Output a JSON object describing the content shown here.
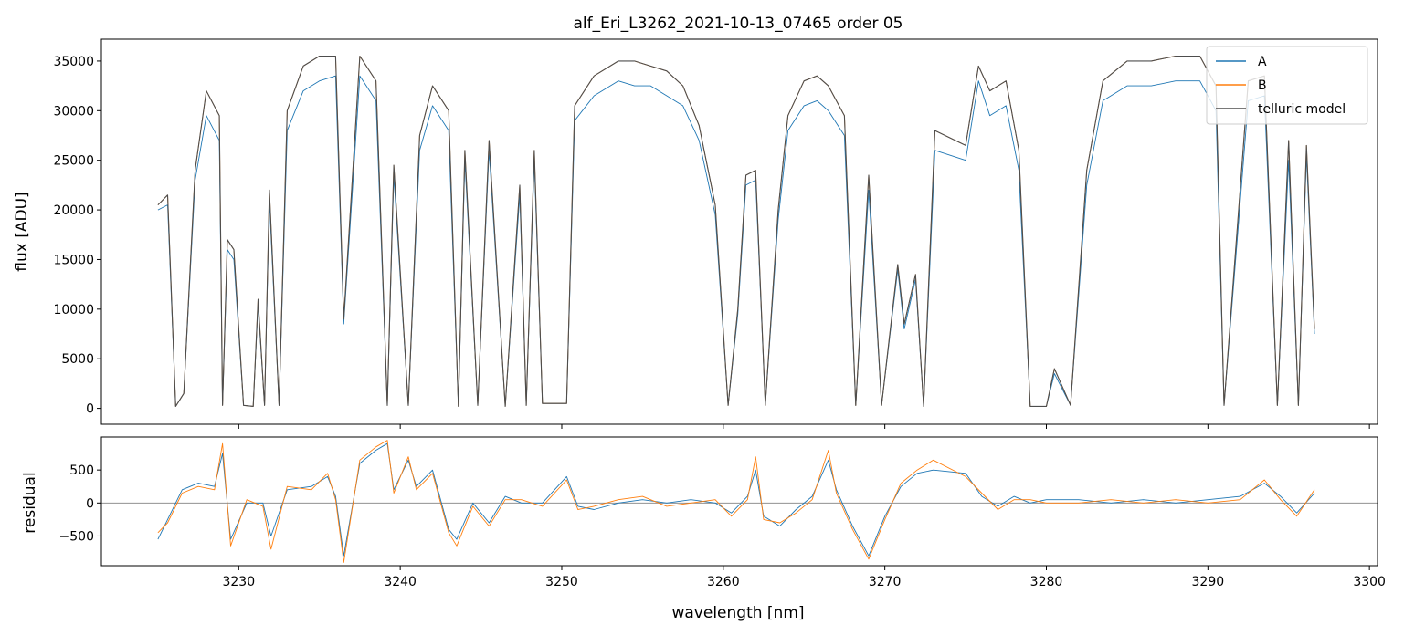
{
  "chart_data": [
    {
      "type": "line",
      "title": "alf_Eri_L3262_2021-10-13_07465  order 05",
      "xlabel": "",
      "ylabel": "flux [ADU]",
      "xlim": [
        3221.5,
        3300.5
      ],
      "ylim": [
        -1600,
        37200
      ],
      "yticks": [
        0,
        5000,
        10000,
        15000,
        20000,
        25000,
        30000,
        35000
      ],
      "ytick_labels": [
        "0",
        "5000",
        "10000",
        "15000",
        "20000",
        "25000",
        "30000",
        "35000"
      ],
      "grid": false,
      "legend_position": "top-right",
      "colors": {
        "A": "#1f77b4",
        "B": "#ff7f0e",
        "telluric": "#4d4d4d"
      },
      "series": [
        {
          "name": "A",
          "x": [
            3225.0,
            3225.6,
            3226.1,
            3226.6,
            3227.3,
            3228.0,
            3228.8,
            3229.0,
            3229.3,
            3229.7,
            3230.3,
            3230.9,
            3231.2,
            3231.6,
            3231.9,
            3232.5,
            3233.0,
            3234.0,
            3235.0,
            3236.0,
            3236.5,
            3237.5,
            3238.5,
            3239.2,
            3239.6,
            3240.5,
            3241.2,
            3242.0,
            3243.0,
            3243.6,
            3244.0,
            3244.8,
            3245.5,
            3246.5,
            3247.4,
            3247.8,
            3248.3,
            3248.8,
            3250.3,
            3250.8,
            3252.0,
            3253.5,
            3254.5,
            3255.5,
            3256.5,
            3257.5,
            3258.5,
            3259.5,
            3260.3,
            3260.9,
            3261.4,
            3262.0,
            3262.6,
            3263.4,
            3264.0,
            3265.0,
            3265.8,
            3266.5,
            3267.5,
            3268.2,
            3269.0,
            3269.8,
            3270.8,
            3271.2,
            3271.9,
            3272.4,
            3273.1,
            3275.0,
            3275.8,
            3276.5,
            3277.5,
            3278.3,
            3279.0,
            3280.0,
            3280.5,
            3281.5,
            3282.5,
            3283.5,
            3285.0,
            3286.5,
            3288.0,
            3289.5,
            3290.5,
            3291.0,
            3292.5,
            3293.5,
            3294.3,
            3295.0,
            3295.6,
            3296.1,
            3296.6
          ],
          "y": [
            20000,
            20500,
            200,
            1500,
            23000,
            29500,
            27000,
            300,
            16000,
            15000,
            300,
            200,
            10500,
            300,
            21000,
            300,
            28000,
            32000,
            33000,
            33500,
            8500,
            33500,
            31000,
            300,
            23500,
            300,
            26000,
            30500,
            28000,
            200,
            25000,
            300,
            26000,
            200,
            21500,
            300,
            25000,
            500,
            500,
            29000,
            31500,
            33000,
            32500,
            32500,
            31500,
            30500,
            27000,
            19500,
            300,
            9500,
            22500,
            23000,
            300,
            19000,
            28000,
            30500,
            31000,
            30000,
            27500,
            300,
            22000,
            300,
            14000,
            8000,
            13000,
            200,
            26000,
            25000,
            33000,
            29500,
            30500,
            24000,
            200,
            200,
            3500,
            300,
            22500,
            31000,
            32500,
            32500,
            33000,
            33000,
            30000,
            300,
            31000,
            31500,
            300,
            25000,
            300,
            25500,
            7500
          ]
        },
        {
          "name": "B",
          "x": [
            3225.0,
            3225.6,
            3226.1,
            3226.6,
            3227.3,
            3228.0,
            3228.8,
            3229.0,
            3229.3,
            3229.7,
            3230.3,
            3230.9,
            3231.2,
            3231.6,
            3231.9,
            3232.5,
            3233.0,
            3234.0,
            3235.0,
            3236.0,
            3236.5,
            3237.5,
            3238.5,
            3239.2,
            3239.6,
            3240.5,
            3241.2,
            3242.0,
            3243.0,
            3243.6,
            3244.0,
            3244.8,
            3245.5,
            3246.5,
            3247.4,
            3247.8,
            3248.3,
            3248.8,
            3250.3,
            3250.8,
            3252.0,
            3253.5,
            3254.5,
            3255.5,
            3256.5,
            3257.5,
            3258.5,
            3259.5,
            3260.3,
            3260.9,
            3261.4,
            3262.0,
            3262.6,
            3263.4,
            3264.0,
            3265.0,
            3265.8,
            3266.5,
            3267.5,
            3268.2,
            3269.0,
            3269.8,
            3270.8,
            3271.2,
            3271.9,
            3272.4,
            3273.1,
            3275.0,
            3275.8,
            3276.5,
            3277.5,
            3278.3,
            3279.0,
            3280.0,
            3280.5,
            3281.5,
            3282.5,
            3283.5,
            3285.0,
            3286.5,
            3288.0,
            3289.5,
            3290.5,
            3291.0,
            3292.5,
            3293.5,
            3294.3,
            3295.0,
            3295.6,
            3296.1,
            3296.6
          ],
          "y": [
            20500,
            21500,
            200,
            1500,
            24000,
            32000,
            29500,
            300,
            17000,
            16000,
            300,
            200,
            11000,
            300,
            22000,
            300,
            30000,
            34500,
            35500,
            35500,
            9000,
            35500,
            33000,
            300,
            24500,
            300,
            27500,
            32500,
            30000,
            200,
            26000,
            300,
            27000,
            200,
            22500,
            300,
            26000,
            500,
            500,
            30500,
            33500,
            35000,
            35000,
            34500,
            34000,
            32500,
            28500,
            20500,
            300,
            10000,
            23500,
            24000,
            300,
            20000,
            29500,
            33000,
            33500,
            32500,
            29500,
            300,
            23500,
            300,
            14500,
            8500,
            13500,
            200,
            28000,
            26500,
            34500,
            32000,
            33000,
            26000,
            200,
            200,
            4000,
            300,
            24000,
            33000,
            35000,
            35000,
            35500,
            35500,
            32500,
            300,
            33000,
            33500,
            300,
            27000,
            300,
            26500,
            8000
          ]
        },
        {
          "name": "telluric model",
          "x": [
            3225.0,
            3225.6,
            3226.1,
            3226.6,
            3227.3,
            3228.0,
            3228.8,
            3229.0,
            3229.3,
            3229.7,
            3230.3,
            3230.9,
            3231.2,
            3231.6,
            3231.9,
            3232.5,
            3233.0,
            3234.0,
            3235.0,
            3236.0,
            3236.5,
            3237.5,
            3238.5,
            3239.2,
            3239.6,
            3240.5,
            3241.2,
            3242.0,
            3243.0,
            3243.6,
            3244.0,
            3244.8,
            3245.5,
            3246.5,
            3247.4,
            3247.8,
            3248.3,
            3248.8,
            3250.3,
            3250.8,
            3252.0,
            3253.5,
            3254.5,
            3255.5,
            3256.5,
            3257.5,
            3258.5,
            3259.5,
            3260.3,
            3260.9,
            3261.4,
            3262.0,
            3262.6,
            3263.4,
            3264.0,
            3265.0,
            3265.8,
            3266.5,
            3267.5,
            3268.2,
            3269.0,
            3269.8,
            3270.8,
            3271.2,
            3271.9,
            3272.4,
            3273.1,
            3275.0,
            3275.8,
            3276.5,
            3277.5,
            3278.3,
            3279.0,
            3280.0,
            3280.5,
            3281.5,
            3282.5,
            3283.5,
            3285.0,
            3286.5,
            3288.0,
            3289.5,
            3290.5,
            3291.0,
            3292.5,
            3293.5,
            3294.3,
            3295.0,
            3295.6,
            3296.1,
            3296.6
          ],
          "y": [
            20500,
            21500,
            200,
            1500,
            24000,
            32000,
            29500,
            300,
            17000,
            16000,
            300,
            200,
            11000,
            300,
            22000,
            300,
            30000,
            34500,
            35500,
            35500,
            9000,
            35500,
            33000,
            300,
            24500,
            300,
            27500,
            32500,
            30000,
            200,
            26000,
            300,
            27000,
            200,
            22500,
            300,
            26000,
            500,
            500,
            30500,
            33500,
            35000,
            35000,
            34500,
            34000,
            32500,
            28500,
            20500,
            300,
            10000,
            23500,
            24000,
            300,
            20000,
            29500,
            33000,
            33500,
            32500,
            29500,
            300,
            23500,
            300,
            14500,
            8500,
            13500,
            200,
            28000,
            26500,
            34500,
            32000,
            33000,
            26000,
            200,
            200,
            4000,
            300,
            24000,
            33000,
            35000,
            35000,
            35500,
            35500,
            32500,
            300,
            33000,
            33500,
            300,
            27000,
            300,
            26500,
            8000
          ]
        }
      ]
    },
    {
      "type": "line",
      "title": "",
      "xlabel": "wavelength [nm]",
      "ylabel": "residual",
      "xlim": [
        3221.5,
        3300.5
      ],
      "ylim": [
        -950,
        1000
      ],
      "xticks": [
        3230,
        3240,
        3250,
        3260,
        3270,
        3280,
        3290,
        3300
      ],
      "xtick_labels": [
        "3230",
        "3240",
        "3250",
        "3260",
        "3270",
        "3280",
        "3290",
        "3300"
      ],
      "yticks": [
        -500,
        0,
        500
      ],
      "ytick_labels": [
        "−500",
        "0",
        "500"
      ],
      "zero_line": true,
      "grid": false,
      "series": [
        {
          "name": "A",
          "x": [
            3225.0,
            3225.6,
            3226.5,
            3227.5,
            3228.5,
            3229.0,
            3229.5,
            3230.5,
            3231.5,
            3232.0,
            3233.0,
            3234.5,
            3235.5,
            3236.0,
            3236.5,
            3237.5,
            3238.5,
            3239.2,
            3239.6,
            3240.5,
            3241.0,
            3242.0,
            3243.0,
            3243.5,
            3244.5,
            3245.5,
            3246.5,
            3247.5,
            3248.8,
            3250.3,
            3251.0,
            3252.0,
            3253.5,
            3255.0,
            3256.5,
            3258.0,
            3259.5,
            3260.5,
            3261.5,
            3262.0,
            3262.5,
            3263.5,
            3264.5,
            3265.5,
            3266.5,
            3267.0,
            3268.0,
            3269.0,
            3270.0,
            3271.0,
            3272.0,
            3273.0,
            3275.0,
            3276.0,
            3277.0,
            3278.0,
            3279.0,
            3280.0,
            3282.0,
            3284.0,
            3286.0,
            3288.0,
            3290.0,
            3292.0,
            3293.5,
            3294.5,
            3295.5,
            3296.6
          ],
          "y": [
            -550,
            -250,
            200,
            300,
            250,
            750,
            -550,
            0,
            0,
            -500,
            200,
            250,
            400,
            100,
            -800,
            600,
            800,
            900,
            200,
            650,
            250,
            500,
            -400,
            -550,
            0,
            -300,
            100,
            0,
            0,
            400,
            -50,
            -100,
            0,
            50,
            0,
            50,
            0,
            -150,
            100,
            500,
            -200,
            -350,
            -100,
            100,
            650,
            200,
            -350,
            -800,
            -200,
            250,
            450,
            500,
            450,
            100,
            -50,
            100,
            0,
            50,
            50,
            0,
            50,
            0,
            50,
            100,
            300,
            100,
            -150,
            150
          ]
        },
        {
          "name": "B",
          "x": [
            3225.0,
            3225.6,
            3226.5,
            3227.5,
            3228.5,
            3229.0,
            3229.5,
            3230.5,
            3231.5,
            3232.0,
            3233.0,
            3234.5,
            3235.5,
            3236.0,
            3236.5,
            3237.5,
            3238.5,
            3239.2,
            3239.6,
            3240.5,
            3241.0,
            3242.0,
            3243.0,
            3243.5,
            3244.5,
            3245.5,
            3246.5,
            3247.5,
            3248.8,
            3250.3,
            3251.0,
            3252.0,
            3253.5,
            3255.0,
            3256.5,
            3258.0,
            3259.5,
            3260.5,
            3261.5,
            3262.0,
            3262.5,
            3263.5,
            3264.5,
            3265.5,
            3266.5,
            3267.0,
            3268.0,
            3269.0,
            3270.0,
            3271.0,
            3272.0,
            3273.0,
            3275.0,
            3276.0,
            3277.0,
            3278.0,
            3279.0,
            3280.0,
            3282.0,
            3284.0,
            3286.0,
            3288.0,
            3290.0,
            3292.0,
            3293.5,
            3294.5,
            3295.5,
            3296.6
          ],
          "y": [
            -450,
            -300,
            150,
            250,
            200,
            900,
            -650,
            50,
            -50,
            -700,
            250,
            200,
            450,
            50,
            -900,
            650,
            850,
            950,
            150,
            700,
            200,
            450,
            -450,
            -650,
            -50,
            -350,
            50,
            50,
            -50,
            350,
            -100,
            -50,
            50,
            100,
            -50,
            0,
            50,
            -200,
            50,
            700,
            -250,
            -300,
            -150,
            50,
            800,
            150,
            -400,
            -850,
            -250,
            300,
            500,
            650,
            400,
            150,
            -100,
            50,
            50,
            0,
            0,
            50,
            0,
            50,
            0,
            50,
            350,
            50,
            -200,
            200
          ]
        }
      ]
    }
  ],
  "legend": {
    "entries": [
      {
        "label": "A",
        "color": "#1f77b4"
      },
      {
        "label": "B",
        "color": "#ff7f0e"
      },
      {
        "label": "telluric model",
        "color": "#4d4d4d"
      }
    ]
  }
}
